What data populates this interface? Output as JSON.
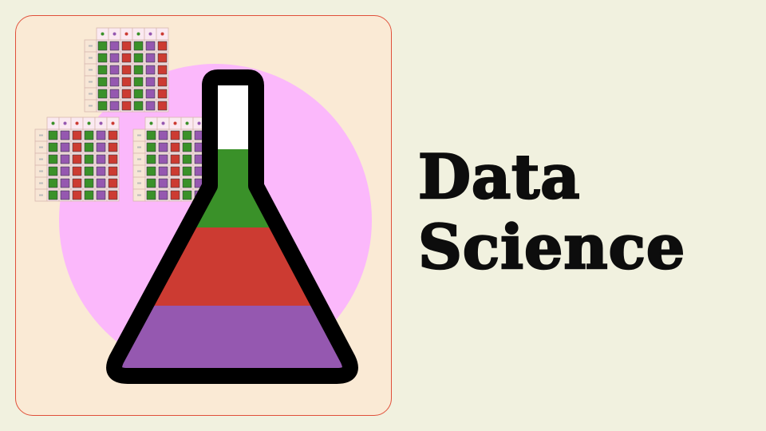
{
  "title": {
    "line1": "Data",
    "line2": "Science"
  },
  "colors": {
    "background": "#f1f1df",
    "panel": "#faead5",
    "panel_border": "#e0503a",
    "circle": "#fbb8fb",
    "green": "#3a9129",
    "red": "#cc3b32",
    "purple": "#9558b0",
    "flask_outline": "#000000",
    "flask_top": "#ffffff"
  },
  "icons": [
    "data-grid-icon",
    "flask-icon"
  ],
  "grid_pattern": {
    "header_dots": [
      "green",
      "purple",
      "red",
      "green",
      "purple",
      "red"
    ],
    "row_cells": [
      "green",
      "purple",
      "red",
      "green",
      "purple",
      "red"
    ],
    "rows": 6
  }
}
